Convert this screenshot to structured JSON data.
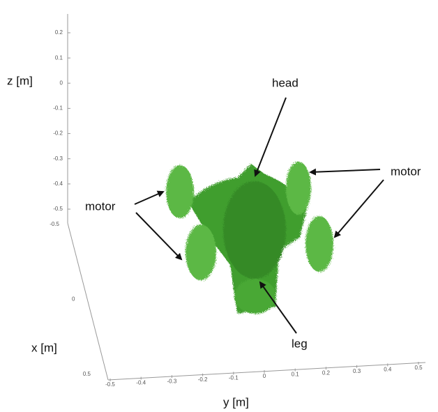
{
  "axes": {
    "z": {
      "label": "z [m]",
      "ticks": [
        "0.2",
        "0.1",
        "0",
        "-0.1",
        "-0.2",
        "-0.3",
        "-0.4",
        "-0.5"
      ]
    },
    "x": {
      "label": "x [m]",
      "ticks": [
        "-0.5",
        "0",
        "0.5"
      ]
    },
    "y": {
      "label": "y [m]",
      "ticks": [
        "-0.5",
        "-0.4",
        "-0.3",
        "-0.2",
        "-0.1",
        "0",
        "0.1",
        "0.2",
        "0.3",
        "0.4",
        "0.5"
      ]
    }
  },
  "annotations": {
    "head": "head",
    "motor_left": "motor",
    "motor_right": "motor",
    "leg": "leg"
  }
}
